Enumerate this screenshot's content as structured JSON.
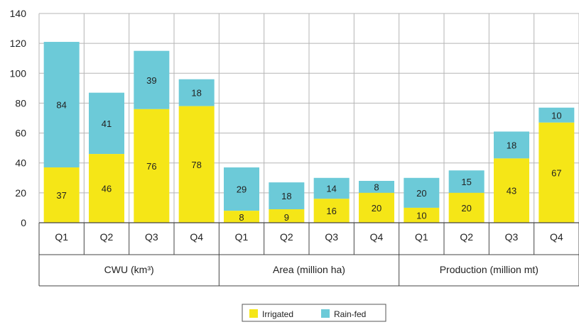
{
  "chart_data": {
    "type": "bar",
    "stacked": true,
    "title": "",
    "xlabel": "",
    "ylabel": "",
    "ylim": [
      0,
      140
    ],
    "yticks": [
      0,
      20,
      40,
      60,
      80,
      100,
      120,
      140
    ],
    "grid": true,
    "legend_position": "bottom",
    "groups": [
      {
        "label": "CWU (km³)",
        "categories": [
          "Q1",
          "Q2",
          "Q3",
          "Q4"
        ]
      },
      {
        "label": "Area (million ha)",
        "categories": [
          "Q1",
          "Q2",
          "Q3",
          "Q4"
        ]
      },
      {
        "label": "Production (million mt)",
        "categories": [
          "Q1",
          "Q2",
          "Q3",
          "Q4"
        ]
      }
    ],
    "categories": [
      "Q1",
      "Q2",
      "Q3",
      "Q4",
      "Q1",
      "Q2",
      "Q3",
      "Q4",
      "Q1",
      "Q2",
      "Q3",
      "Q4"
    ],
    "series": [
      {
        "name": "Irrigated",
        "color": "#f5e617",
        "values": [
          37,
          46,
          76,
          78,
          8,
          9,
          16,
          20,
          10,
          20,
          43,
          67
        ]
      },
      {
        "name": "Rain-fed",
        "color": "#6ccad8",
        "values": [
          84,
          41,
          39,
          18,
          29,
          18,
          14,
          8,
          20,
          15,
          18,
          10
        ]
      }
    ]
  }
}
